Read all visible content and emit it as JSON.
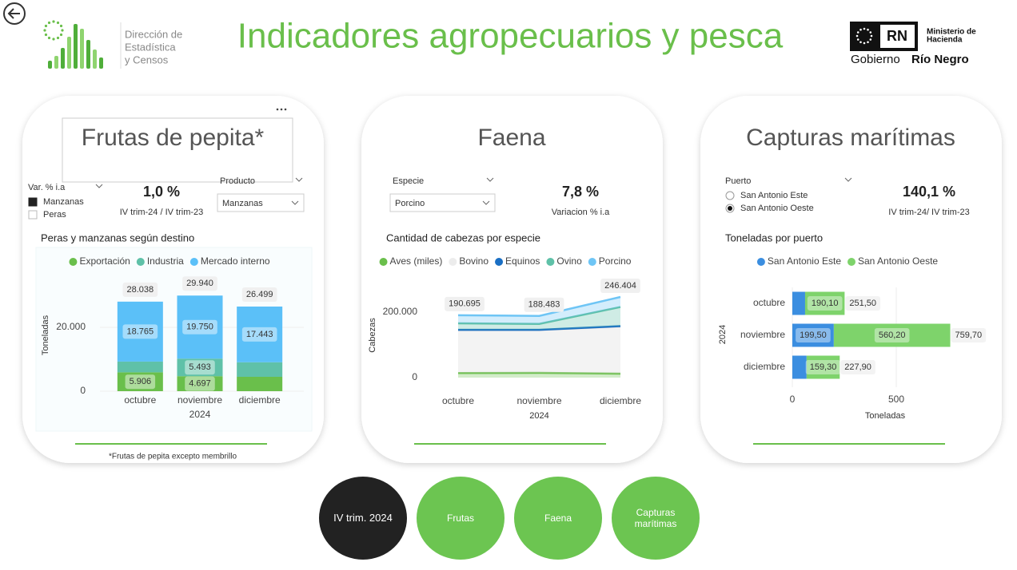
{
  "header": {
    "title": "Indicadores agropecuarios y pesca",
    "logo_left": [
      "Dirección de",
      "Estadística",
      "y Censos"
    ],
    "logo_right": {
      "badge": "RN",
      "ministry": [
        "Ministerio de",
        "Hacienda"
      ],
      "government": [
        "Gobierno",
        "Río Negro"
      ]
    }
  },
  "panels": [
    {
      "title": "Frutas de pepita*",
      "filter": {
        "label": "Var. % i.a",
        "options": [
          "Manzanas",
          "Peras"
        ],
        "selected": 0
      },
      "kpi": {
        "value": "1,0 %",
        "caption": "IV trim-24 / IV trim-23"
      },
      "dropdown": {
        "label": "Producto",
        "value": "Manzanas"
      },
      "chart": {
        "type": "bar",
        "orientation": "vertical",
        "stacked": true,
        "title": "Peras y manzanas según destino",
        "y_label": "Toneladas",
        "x_label": "2024",
        "categories": [
          "octubre",
          "noviembre",
          "diciembre"
        ],
        "ylim": [
          0,
          30000
        ],
        "yticks": [
          0,
          {
            "value": 20000,
            "label": "20.000"
          }
        ],
        "grid": true,
        "series": [
          {
            "name": "Exportación",
            "color": "#6abf4b",
            "values": [
              5906,
              4697,
              4500
            ],
            "value_labels": [
              "5.906",
              "4.697",
              null
            ]
          },
          {
            "name": "Industria",
            "color": "#5fc1a8",
            "values": [
              3367,
              5493,
              4556
            ],
            "value_labels": [
              null,
              "5.493",
              null
            ]
          },
          {
            "name": "Mercado interno",
            "color": "#5bc0f8",
            "values": [
              18765,
              19750,
              17443
            ],
            "value_labels": [
              "18.765",
              "19.750",
              "17.443"
            ]
          }
        ],
        "totals": {
          "values": [
            28038,
            29940,
            26499
          ],
          "value_labels": [
            "28.038",
            "29.940",
            "26.499"
          ]
        }
      },
      "footnote": "*Frutas de pepita excepto membrillo"
    },
    {
      "title": "Faena",
      "dropdown": {
        "label": "Especie",
        "value": "Porcino"
      },
      "kpi": {
        "value": "7,8 %",
        "caption": "Variacion % i.a"
      },
      "chart": {
        "type": "area",
        "stacked": true,
        "title": "Cantidad de cabezas por especie",
        "y_label": "Cabezas",
        "x_label": "2024",
        "categories": [
          "octubre",
          "noviembre",
          "diciembre"
        ],
        "ylim": [
          0,
          250000
        ],
        "yticks": [
          0,
          {
            "value": 200000,
            "label": "200.000"
          }
        ],
        "grid": false,
        "series": [
          {
            "name": "Aves (miles)",
            "color": "#6abf4b",
            "values": [
              14000,
              14500,
              12200
            ]
          },
          {
            "name": "Bovino",
            "color": "#dddddd",
            "values": [
              131000,
              130500,
              144000
            ]
          },
          {
            "name": "Equinos",
            "color": "#1a6fc4",
            "values": [
              1000,
              1000,
              1000
            ]
          },
          {
            "name": "Ovino",
            "color": "#5fc1a8",
            "values": [
              20000,
              18000,
              58500
            ]
          },
          {
            "name": "Porcino",
            "color": "#6ec5f5",
            "values": [
              24695,
              24483,
              30704
            ]
          }
        ],
        "totals": {
          "values": [
            190695,
            188483,
            246404
          ],
          "value_labels": [
            "190.695",
            "188.483",
            "246.404"
          ]
        }
      }
    },
    {
      "title": "Capturas marítimas",
      "radio": {
        "label": "Puerto",
        "options": [
          "San Antonio Este",
          "San Antonio Oeste"
        ],
        "selected": 1
      },
      "kpi": {
        "value": "140,1 %",
        "caption": "IV trim-24/ IV trim-23"
      },
      "chart": {
        "type": "bar",
        "orientation": "horizontal",
        "stacked": true,
        "title": "Toneladas por puerto",
        "y_label": "2024",
        "x_label": "Toneladas",
        "categories": [
          "octubre",
          "noviembre",
          "diciembre"
        ],
        "xlim": [
          0,
          800
        ],
        "xticks": [
          0,
          500
        ],
        "grid": true,
        "series": [
          {
            "name": "San Antonio Este",
            "color": "#3b8ee0",
            "values": [
              61.4,
              199.5,
              68.6
            ],
            "value_labels": [
              null,
              "199,50",
              null
            ]
          },
          {
            "name": "San Antonio Oeste",
            "color": "#7ed36b",
            "values": [
              190.1,
              560.2,
              159.3
            ],
            "value_labels": [
              "190,10",
              "560,20",
              "159,30"
            ]
          }
        ],
        "totals": {
          "values": [
            251.5,
            759.7,
            227.9
          ],
          "value_labels": [
            "251,50",
            "759,70",
            "227,90"
          ]
        }
      }
    }
  ],
  "nav": {
    "buttons": [
      "IV trim. 2024",
      "Frutas",
      "Faena",
      "Capturas marítimas"
    ],
    "active": 0
  }
}
